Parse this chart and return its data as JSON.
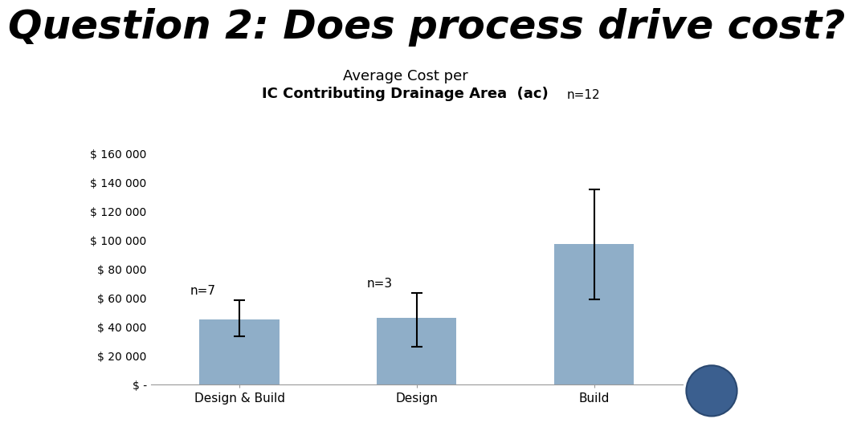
{
  "title_slide": "Question 2: Does process drive cost?",
  "chart_title_line1": "Average Cost per",
  "chart_title_line2": "IC Contributing Drainage Area  (ac)",
  "n_label": "n=12",
  "categories": [
    "Design & Build",
    "Design",
    "Build"
  ],
  "values": [
    45000,
    46000,
    97000
  ],
  "errors_upper": [
    13000,
    17000,
    38000
  ],
  "errors_lower": [
    12000,
    20000,
    38000
  ],
  "n_labels": [
    "n=7",
    "n=3",
    ""
  ],
  "bar_color": "#8FAEC8",
  "bar_edgecolor": "none",
  "background_color": "#ffffff",
  "ylim": [
    0,
    168000
  ],
  "ytick_values": [
    0,
    20000,
    40000,
    60000,
    80000,
    100000,
    120000,
    140000,
    160000
  ],
  "ytick_labels": [
    "$ -",
    "$ 20 000",
    "$ 40 000",
    "$ 60 000",
    "$ 80 000",
    "$ 100 000",
    "$ 120 000",
    "$ 140 000",
    "$ 160 000"
  ],
  "elinewidth": 1.5,
  "capsize": 5,
  "capthick": 1.5,
  "slide_title_fontsize": 36,
  "chart_title_fontsize": 13,
  "tick_fontsize": 10,
  "xtick_fontsize": 11,
  "nlabel_fontsize": 11,
  "n12_fontsize": 11
}
